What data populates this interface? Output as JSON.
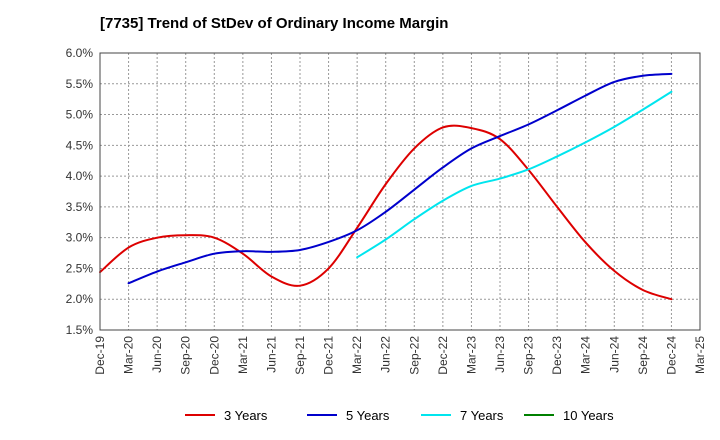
{
  "chart_data": {
    "type": "line",
    "title": "[7735]  Trend of StDev of Ordinary Income Margin",
    "xlabel": "",
    "ylabel": "",
    "ylim": [
      1.5,
      6.0
    ],
    "yticks": [
      "1.5%",
      "2.0%",
      "2.5%",
      "3.0%",
      "3.5%",
      "4.0%",
      "4.5%",
      "5.0%",
      "5.5%",
      "6.0%"
    ],
    "ytick_values": [
      1.5,
      2.0,
      2.5,
      3.0,
      3.5,
      4.0,
      4.5,
      5.0,
      5.5,
      6.0
    ],
    "categories": [
      "Dec-19",
      "Mar-20",
      "Jun-20",
      "Sep-20",
      "Dec-20",
      "Mar-21",
      "Jun-21",
      "Sep-21",
      "Dec-21",
      "Mar-22",
      "Jun-22",
      "Sep-22",
      "Dec-22",
      "Mar-23",
      "Jun-23",
      "Sep-23",
      "Dec-23",
      "Mar-24",
      "Jun-24",
      "Sep-24",
      "Dec-24",
      "Mar-25"
    ],
    "grid": true,
    "legend_position": "bottom",
    "series": [
      {
        "name": "3 Years",
        "color": "#dd0000",
        "values": [
          2.44,
          2.84,
          3.0,
          3.04,
          3.0,
          2.74,
          2.37,
          2.22,
          2.5,
          3.16,
          3.87,
          4.45,
          4.79,
          4.78,
          4.6,
          4.1,
          3.5,
          2.92,
          2.46,
          2.15,
          2.0,
          null
        ]
      },
      {
        "name": "5 Years",
        "color": "#0000cc",
        "values": [
          null,
          2.26,
          2.45,
          2.6,
          2.74,
          2.78,
          2.77,
          2.8,
          2.93,
          3.12,
          3.42,
          3.78,
          4.14,
          4.45,
          4.65,
          4.84,
          5.07,
          5.31,
          5.53,
          5.63,
          5.66,
          null
        ]
      },
      {
        "name": "7 Years",
        "color": "#00e5ee",
        "values": [
          null,
          null,
          null,
          null,
          null,
          null,
          null,
          null,
          null,
          2.68,
          2.97,
          3.3,
          3.6,
          3.84,
          3.96,
          4.11,
          4.32,
          4.55,
          4.8,
          5.08,
          5.37,
          null
        ]
      },
      {
        "name": "10 Years",
        "color": "#008000",
        "values": [
          null,
          null,
          null,
          null,
          null,
          null,
          null,
          null,
          null,
          null,
          null,
          null,
          null,
          null,
          null,
          null,
          null,
          null,
          null,
          null,
          null,
          null
        ]
      }
    ]
  }
}
